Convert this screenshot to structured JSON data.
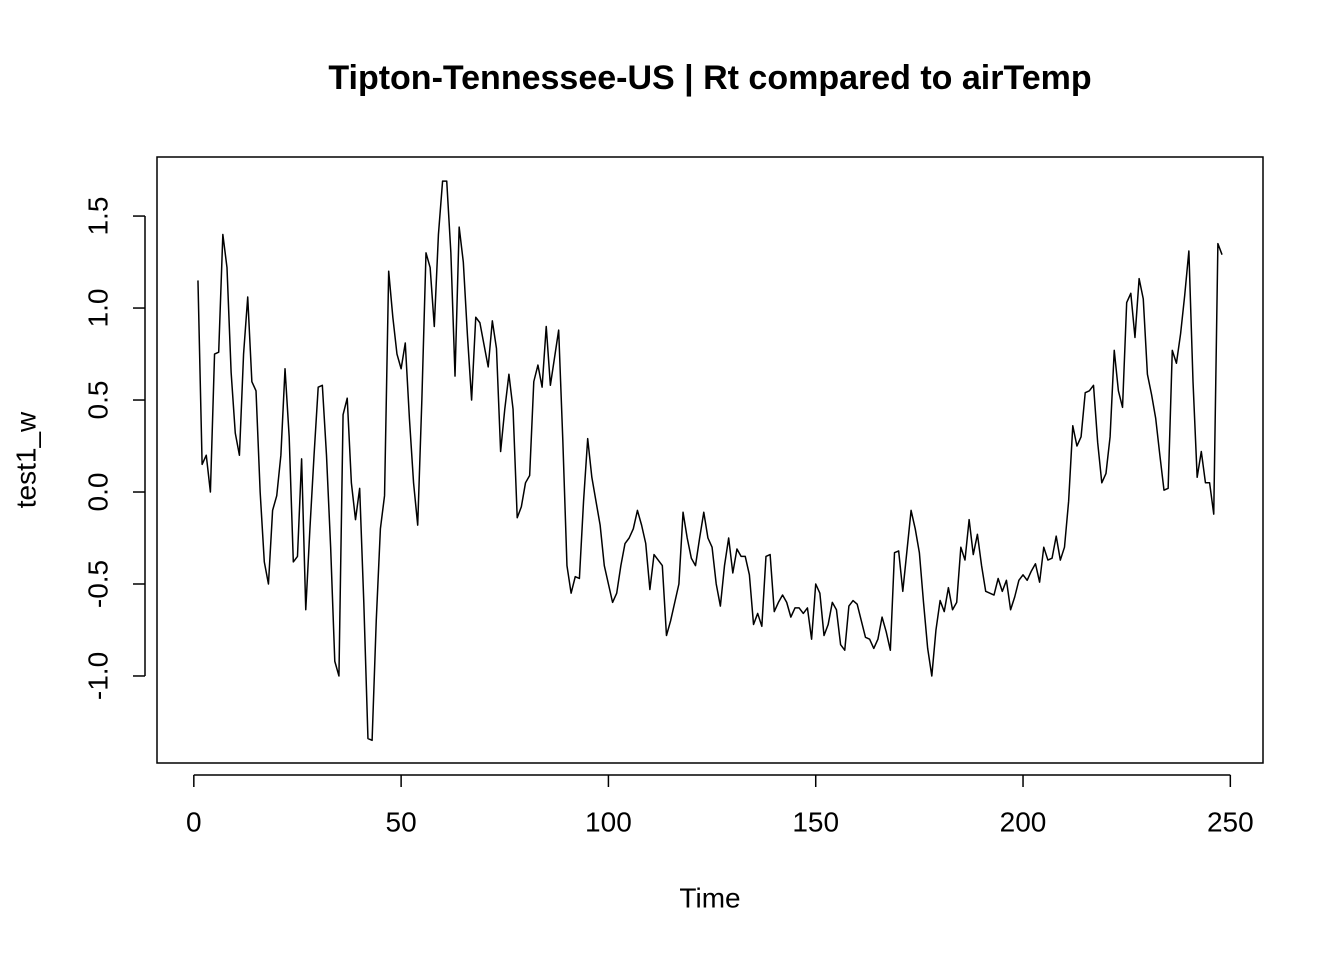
{
  "chart_data": {
    "type": "line",
    "title": "Tipton-Tennessee-US | Rt compared to airTemp",
    "xlabel": "Time",
    "ylabel": "test1_w",
    "x": [
      1,
      2,
      3,
      4,
      5,
      6,
      7,
      8,
      9,
      10,
      11,
      12,
      13,
      14,
      15,
      16,
      17,
      18,
      19,
      20,
      21,
      22,
      23,
      24,
      25,
      26,
      27,
      28,
      29,
      30,
      31,
      32,
      33,
      34,
      35,
      36,
      37,
      38,
      39,
      40,
      41,
      42,
      43,
      44,
      45,
      46,
      47,
      48,
      49,
      50,
      51,
      52,
      53,
      54,
      55,
      56,
      57,
      58,
      59,
      60,
      61,
      62,
      63,
      64,
      65,
      66,
      67,
      68,
      69,
      70,
      71,
      72,
      73,
      74,
      75,
      76,
      77,
      78,
      79,
      80,
      81,
      82,
      83,
      84,
      85,
      86,
      87,
      88,
      89,
      90,
      91,
      92,
      93,
      94,
      95,
      96,
      97,
      98,
      99,
      100,
      101,
      102,
      103,
      104,
      105,
      106,
      107,
      108,
      109,
      110,
      111,
      112,
      113,
      114,
      115,
      116,
      117,
      118,
      119,
      120,
      121,
      122,
      123,
      124,
      125,
      126,
      127,
      128,
      129,
      130,
      131,
      132,
      133,
      134,
      135,
      136,
      137,
      138,
      139,
      140,
      141,
      142,
      143,
      144,
      145,
      146,
      147,
      148,
      149,
      150,
      151,
      152,
      153,
      154,
      155,
      156,
      157,
      158,
      159,
      160,
      161,
      162,
      163,
      164,
      165,
      166,
      167,
      168,
      169,
      170,
      171,
      172,
      173,
      174,
      175,
      176,
      177,
      178,
      179,
      180,
      181,
      182,
      183,
      184,
      185,
      186,
      187,
      188,
      189,
      190,
      191,
      192,
      193,
      194,
      195,
      196,
      197,
      198,
      199,
      200,
      201,
      202,
      203,
      204,
      205,
      206,
      207,
      208,
      209,
      210,
      211,
      212,
      213,
      214,
      215,
      216,
      217,
      218,
      219,
      220,
      221,
      222,
      223,
      224,
      225,
      226,
      227,
      228,
      229,
      230,
      231,
      232,
      233,
      234,
      235,
      236,
      237,
      238,
      239,
      240,
      241,
      242,
      243,
      244,
      245,
      246,
      247,
      248
    ],
    "values": [
      1.15,
      0.15,
      0.2,
      0.0,
      0.75,
      0.76,
      1.4,
      1.22,
      0.65,
      0.32,
      0.2,
      0.75,
      1.06,
      0.6,
      0.55,
      0.0,
      -0.38,
      -0.5,
      -0.1,
      -0.02,
      0.2,
      0.67,
      0.3,
      -0.38,
      -0.35,
      0.18,
      -0.64,
      -0.2,
      0.2,
      0.57,
      0.58,
      0.2,
      -0.3,
      -0.92,
      -1.0,
      0.42,
      0.51,
      0.05,
      -0.15,
      0.02,
      -0.6,
      -1.34,
      -1.35,
      -0.7,
      -0.2,
      -0.02,
      1.2,
      0.95,
      0.75,
      0.67,
      0.81,
      0.4,
      0.05,
      -0.18,
      0.5,
      1.3,
      1.22,
      0.9,
      1.4,
      1.69,
      1.69,
      1.3,
      0.63,
      1.44,
      1.25,
      0.85,
      0.5,
      0.95,
      0.92,
      0.8,
      0.68,
      0.93,
      0.78,
      0.22,
      0.45,
      0.64,
      0.45,
      -0.14,
      -0.08,
      0.05,
      0.09,
      0.6,
      0.69,
      0.57,
      0.9,
      0.58,
      0.73,
      0.88,
      0.28,
      -0.4,
      -0.55,
      -0.46,
      -0.47,
      -0.05,
      0.29,
      0.08,
      -0.05,
      -0.18,
      -0.4,
      -0.5,
      -0.6,
      -0.55,
      -0.4,
      -0.28,
      -0.25,
      -0.2,
      -0.1,
      -0.18,
      -0.28,
      -0.53,
      -0.34,
      -0.37,
      -0.4,
      -0.78,
      -0.7,
      -0.6,
      -0.5,
      -0.11,
      -0.25,
      -0.36,
      -0.4,
      -0.25,
      -0.11,
      -0.25,
      -0.3,
      -0.5,
      -0.62,
      -0.4,
      -0.25,
      -0.44,
      -0.31,
      -0.35,
      -0.35,
      -0.45,
      -0.72,
      -0.66,
      -0.73,
      -0.35,
      -0.34,
      -0.65,
      -0.6,
      -0.56,
      -0.6,
      -0.68,
      -0.63,
      -0.63,
      -0.66,
      -0.63,
      -0.8,
      -0.5,
      -0.55,
      -0.78,
      -0.72,
      -0.6,
      -0.64,
      -0.83,
      -0.86,
      -0.62,
      -0.59,
      -0.61,
      -0.7,
      -0.79,
      -0.8,
      -0.85,
      -0.8,
      -0.68,
      -0.76,
      -0.86,
      -0.33,
      -0.32,
      -0.54,
      -0.32,
      -0.1,
      -0.2,
      -0.33,
      -0.6,
      -0.85,
      -1.0,
      -0.75,
      -0.59,
      -0.65,
      -0.52,
      -0.64,
      -0.6,
      -0.3,
      -0.37,
      -0.15,
      -0.34,
      -0.23,
      -0.4,
      -0.54,
      -0.55,
      -0.56,
      -0.47,
      -0.54,
      -0.48,
      -0.64,
      -0.57,
      -0.48,
      -0.45,
      -0.48,
      -0.43,
      -0.39,
      -0.49,
      -0.3,
      -0.37,
      -0.36,
      -0.24,
      -0.37,
      -0.3,
      -0.05,
      0.36,
      0.25,
      0.3,
      0.54,
      0.55,
      0.58,
      0.27,
      0.05,
      0.1,
      0.3,
      0.77,
      0.55,
      0.46,
      1.03,
      1.08,
      0.84,
      1.16,
      1.05,
      0.64,
      0.53,
      0.4,
      0.2,
      0.01,
      0.02,
      0.77,
      0.7,
      0.86,
      1.07,
      1.31,
      0.6,
      0.08,
      0.22,
      0.05,
      0.05,
      -0.12,
      1.35,
      1.29
    ],
    "color": "#000000",
    "xlim": [
      -8.88,
      257.88
    ],
    "xticks": [
      0,
      50,
      100,
      150,
      200,
      250
    ],
    "ylim": [
      -1.473,
      1.821
    ],
    "yticks": [
      {
        "value": -1,
        "label": "-1.0"
      },
      -0.5,
      {
        "value": 0,
        "label": "0.0"
      },
      0.5,
      {
        "value": 1,
        "label": "1.0"
      },
      1.5
    ],
    "grid": false
  }
}
